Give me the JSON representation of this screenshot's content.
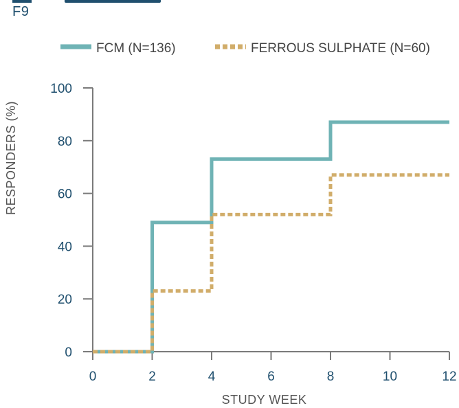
{
  "figure_label": "F9",
  "chart_data": {
    "type": "line",
    "step": true,
    "xlabel": "STUDY WEEK",
    "ylabel": "RESPONDERS (%)",
    "xlim": [
      0,
      12
    ],
    "ylim": [
      0,
      100
    ],
    "x_ticks": [
      0,
      2,
      4,
      6,
      8,
      10,
      12
    ],
    "y_ticks": [
      0,
      20,
      40,
      60,
      80,
      100
    ],
    "grid": false,
    "legend_position": "top",
    "series": [
      {
        "name": "FCM (N=136)",
        "color": "#6fb3b5",
        "style": "solid",
        "x": [
          0,
          2,
          4,
          8,
          12
        ],
        "y": [
          0,
          49,
          73,
          87,
          87
        ]
      },
      {
        "name": "FERROUS SULPHATE (N=60)",
        "color": "#d1ad6a",
        "style": "dotted",
        "x": [
          0,
          2,
          4,
          8,
          12
        ],
        "y": [
          0,
          23,
          52,
          67,
          67
        ]
      }
    ]
  }
}
